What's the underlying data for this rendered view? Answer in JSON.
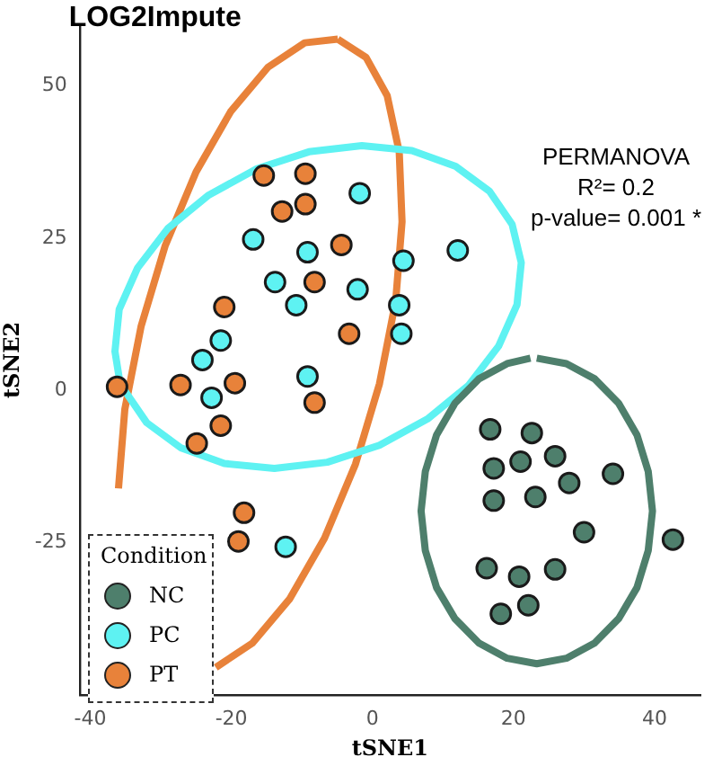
{
  "chart_data": {
    "type": "scatter",
    "title": "LOG2Impute",
    "xlabel": "tSNE1",
    "ylabel": "tSNE2",
    "legend_title": "Condition",
    "legend": "bottom left",
    "grid": false,
    "marker": "circle",
    "xlim": [
      -41.5,
      46.5
    ],
    "ylim": [
      -50,
      60
    ],
    "xticks": [
      -40,
      -20,
      0,
      20,
      40
    ],
    "yticks": [
      -25,
      0,
      25,
      50
    ],
    "annotations": [
      "PERMANOVA",
      "R²= 0.2",
      "p-value= 0.001 *"
    ],
    "series": [
      {
        "name": "NC",
        "color": "#4e7f6c",
        "x": [
          16.7,
          22.6,
          17.2,
          21.0,
          25.9,
          17.2,
          23.1,
          27.9,
          34.1,
          30.0,
          42.6,
          16.2,
          20.8,
          25.9,
          18.2,
          22.1
        ],
        "values": [
          -6.4,
          -7.0,
          -12.8,
          -11.7,
          -10.8,
          -18.1,
          -17.5,
          -15.2,
          -13.7,
          -23.3,
          -24.5,
          -29.2,
          -30.6,
          -29.4,
          -36.7,
          -35.3
        ]
      },
      {
        "name": "PC",
        "color": "#5ef2f2",
        "x": [
          -1.8,
          -16.9,
          -9.2,
          -13.8,
          -10.8,
          -2.1,
          4.4,
          3.8,
          4.1,
          12.1,
          -21.5,
          -24.1,
          -22.8,
          -9.2,
          -12.3
        ],
        "values": [
          32.4,
          24.8,
          22.7,
          17.8,
          14.0,
          16.6,
          21.3,
          14.0,
          9.3,
          23.0,
          8.2,
          5.0,
          -1.2,
          2.3,
          -25.7
        ]
      },
      {
        "name": "PT",
        "color": "#e8823a",
        "x": [
          -15.4,
          -9.5,
          -12.8,
          -9.5,
          -4.4,
          -8.2,
          -21.0,
          -3.3,
          -36.2,
          -27.2,
          -19.5,
          -8.2,
          -21.5,
          -24.9,
          -18.2,
          -19.0
        ],
        "values": [
          35.3,
          35.6,
          29.4,
          30.6,
          23.9,
          17.8,
          13.7,
          9.3,
          0.6,
          0.9,
          1.2,
          -2.0,
          -5.8,
          -8.7,
          -20.1,
          -24.8
        ]
      },
      {
        "type": "line",
        "marker": "none",
        "color": "#4e7f6c",
        "x": [
          23.3,
          27.5,
          31.5,
          34.9,
          37.5,
          39.1,
          39.7,
          39.1,
          37.5,
          34.9,
          31.5,
          27.5,
          23.3,
          19.1,
          15.1,
          11.7,
          9.1,
          7.5,
          6.9,
          7.5,
          9.1,
          11.7,
          15.1,
          19.1,
          22.4
        ],
        "values": [
          5.3,
          4.4,
          1.9,
          -2.1,
          -7.3,
          -13.3,
          -19.8,
          -26.3,
          -32.4,
          -37.5,
          -41.5,
          -44.0,
          -44.9,
          -44.0,
          -41.5,
          -37.5,
          -32.4,
          -26.3,
          -19.8,
          -13.3,
          -7.3,
          -2.1,
          1.9,
          4.4,
          5.3
        ]
      },
      {
        "type": "line",
        "marker": "none",
        "color": "#5ef2f2",
        "x": [
          -35.9,
          -36.5,
          -35.9,
          -33.3,
          -29.0,
          -23.2,
          -16.4,
          -9.0,
          -1.5,
          5.6,
          11.8,
          16.6,
          19.8,
          21.1,
          20.5,
          17.9,
          13.6,
          7.8,
          1.0,
          -6.4,
          -13.9,
          -21.0,
          -27.2,
          -32.0,
          -35.2
        ],
        "values": [
          2.1,
          6.4,
          13.3,
          20.1,
          26.6,
          32.1,
          36.4,
          39.2,
          40.2,
          39.4,
          36.8,
          32.7,
          27.3,
          21.0,
          14.1,
          7.3,
          0.8,
          -4.7,
          -9.0,
          -11.8,
          -12.8,
          -12.0,
          -9.4,
          -5.3,
          0.1
        ]
      },
      {
        "type": "line",
        "marker": "none",
        "color": "#e8823a",
        "x": [
          -4.9,
          -0.9,
          2.1,
          3.8,
          4.2,
          3.3,
          1.0,
          -2.4,
          -6.8,
          -11.7,
          -17.0,
          -22.2,
          null,
          null,
          null,
          null,
          -36.0,
          -35.1,
          -32.8,
          -29.4,
          -25.0,
          -20.1,
          -14.8,
          -9.6,
          -4.9
        ],
        "values": [
          57.7,
          54.7,
          48.4,
          39.2,
          27.7,
          14.7,
          1.1,
          -12.1,
          -24.3,
          -34.2,
          -41.5,
          -45.5,
          null,
          null,
          null,
          null,
          -16.1,
          -3.1,
          10.5,
          23.7,
          35.9,
          45.8,
          53.1,
          57.1,
          57.7
        ]
      }
    ]
  }
}
